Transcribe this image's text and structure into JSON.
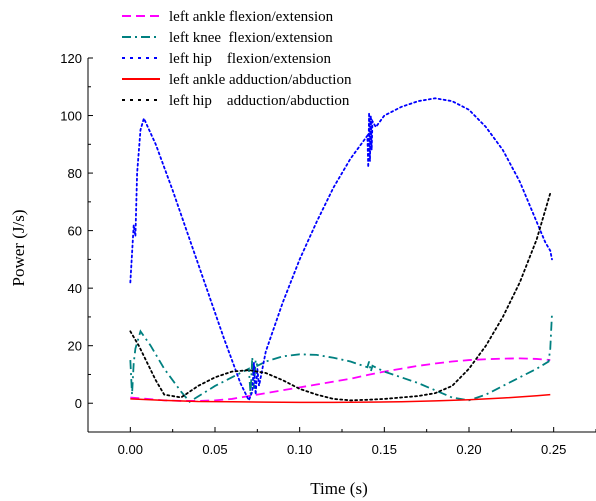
{
  "chart_data": {
    "type": "line",
    "title": "",
    "xlabel": "Time (s)",
    "ylabel": "Power (J/s)",
    "xlim": [
      -0.025,
      0.275
    ],
    "ylim": [
      -10,
      120
    ],
    "xticks": [
      "0.00",
      "0.05",
      "0.10",
      "0.15",
      "0.20",
      "0.25"
    ],
    "yticks": [
      "0",
      "20",
      "40",
      "60",
      "80",
      "100",
      "120"
    ],
    "grid": false,
    "legend_position": "top",
    "series": [
      {
        "name": "left ankle flexion/extension",
        "color": "#ff00ff",
        "style": "dashed",
        "x": [
          0.0,
          0.01,
          0.02,
          0.03,
          0.04,
          0.05,
          0.06,
          0.07,
          0.08,
          0.09,
          0.1,
          0.11,
          0.12,
          0.13,
          0.14,
          0.15,
          0.16,
          0.17,
          0.18,
          0.19,
          0.2,
          0.21,
          0.22,
          0.23,
          0.24,
          0.248
        ],
        "y": [
          2.0,
          1.5,
          1.0,
          0.8,
          0.8,
          1.0,
          1.5,
          2.5,
          3.5,
          4.5,
          5.5,
          6.5,
          7.5,
          8.5,
          9.8,
          11.0,
          12.0,
          13.0,
          13.8,
          14.5,
          15.0,
          15.3,
          15.5,
          15.6,
          15.4,
          15.0
        ]
      },
      {
        "name": "left knee  flexion/extension",
        "color": "#008080",
        "style": "dashdot",
        "x": [
          0.0,
          0.001,
          0.002,
          0.003,
          0.006,
          0.012,
          0.02,
          0.03,
          0.035,
          0.05,
          0.06,
          0.07,
          0.071,
          0.072,
          0.073,
          0.074,
          0.075,
          0.08,
          0.09,
          0.1,
          0.11,
          0.12,
          0.13,
          0.14,
          0.141,
          0.142,
          0.143,
          0.15,
          0.16,
          0.17,
          0.18,
          0.19,
          0.2,
          0.21,
          0.22,
          0.23,
          0.24,
          0.247,
          0.248,
          0.249
        ],
        "y": [
          15.0,
          3.0,
          14.0,
          19.0,
          25.0,
          20.0,
          12.0,
          4.0,
          0.5,
          6.0,
          9.0,
          12.0,
          3.0,
          16.0,
          5.0,
          15.0,
          13.0,
          14.5,
          16.3,
          17.0,
          16.8,
          15.8,
          14.5,
          12.5,
          14.5,
          11.0,
          13.0,
          11.0,
          9.0,
          7.0,
          4.5,
          2.0,
          1.0,
          3.0,
          6.0,
          9.0,
          12.0,
          14.5,
          19.0,
          31.0
        ]
      },
      {
        "name": "left hip    flexion/extension",
        "color": "#0000ff",
        "style": "dotted",
        "x": [
          0.0,
          0.001,
          0.002,
          0.003,
          0.004,
          0.006,
          0.008,
          0.015,
          0.025,
          0.035,
          0.045,
          0.055,
          0.065,
          0.07,
          0.072,
          0.073,
          0.074,
          0.075,
          0.076,
          0.08,
          0.09,
          0.1,
          0.11,
          0.12,
          0.13,
          0.135,
          0.14,
          0.1405,
          0.141,
          0.1415,
          0.142,
          0.1425,
          0.143,
          0.145,
          0.15,
          0.16,
          0.17,
          0.18,
          0.19,
          0.2,
          0.21,
          0.22,
          0.23,
          0.24,
          0.245,
          0.248,
          0.249
        ],
        "y": [
          42.0,
          52.0,
          62.0,
          58.0,
          80.0,
          95.0,
          99.0,
          90.0,
          74.0,
          57.0,
          40.0,
          23.0,
          7.0,
          1.0,
          4.0,
          14.0,
          3.0,
          12.0,
          6.0,
          18.0,
          35.0,
          50.0,
          63.0,
          75.0,
          85.0,
          89.0,
          93.0,
          82.0,
          101.0,
          84.0,
          100.0,
          88.0,
          98.0,
          96.0,
          100.0,
          103.0,
          105.0,
          106.0,
          105.0,
          102.0,
          96.0,
          88.0,
          77.0,
          63.0,
          56.0,
          53.0,
          50.0
        ]
      },
      {
        "name": "left ankle adduction/abduction",
        "color": "#ff0000",
        "style": "solid",
        "x": [
          0.0,
          0.02,
          0.04,
          0.06,
          0.08,
          0.1,
          0.12,
          0.14,
          0.16,
          0.18,
          0.2,
          0.22,
          0.24,
          0.248
        ],
        "y": [
          1.5,
          1.0,
          0.6,
          0.5,
          0.4,
          0.3,
          0.3,
          0.4,
          0.5,
          0.8,
          1.2,
          1.8,
          2.6,
          3.0
        ]
      },
      {
        "name": "left hip    adduction/abduction",
        "color": "#000000",
        "style": "dotted",
        "x": [
          0.0,
          0.005,
          0.01,
          0.015,
          0.02,
          0.03,
          0.04,
          0.05,
          0.06,
          0.07,
          0.08,
          0.09,
          0.1,
          0.11,
          0.12,
          0.13,
          0.14,
          0.15,
          0.16,
          0.17,
          0.18,
          0.19,
          0.2,
          0.21,
          0.22,
          0.23,
          0.24,
          0.248
        ],
        "y": [
          25.0,
          20.0,
          14.0,
          8.0,
          3.0,
          2.0,
          6.0,
          9.0,
          11.0,
          11.5,
          10.5,
          8.0,
          5.0,
          3.0,
          1.5,
          1.0,
          1.2,
          1.5,
          2.0,
          2.5,
          3.5,
          6.0,
          12.0,
          20.0,
          30.0,
          42.0,
          57.0,
          73.0
        ]
      }
    ]
  }
}
